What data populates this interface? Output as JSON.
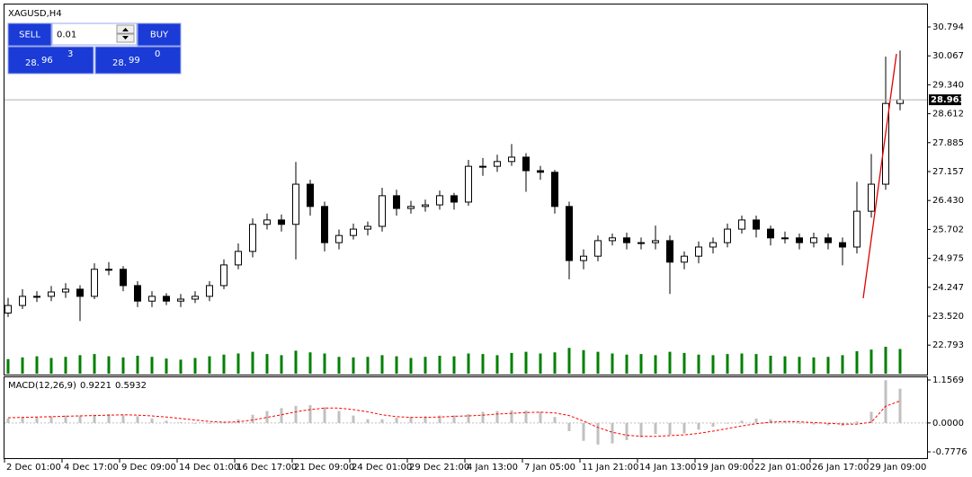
{
  "trade_panel": {
    "sell": "SELL",
    "buy": "BUY",
    "lot": "0.01",
    "sell_price": [
      "28.",
      "96",
      "3"
    ],
    "buy_price": [
      "28.",
      "99",
      "0"
    ]
  },
  "chart_data": [
    {
      "type": "candlestick",
      "title": "XAGUSD,H4",
      "categories": [
        "2 Dec 01:00",
        null,
        null,
        null,
        "4 Dec 17:00",
        null,
        null,
        null,
        "9 Dec 09:00",
        null,
        null,
        null,
        "14 Dec 01:00",
        null,
        null,
        null,
        "16 Dec 17:00",
        null,
        null,
        null,
        "21 Dec 09:00",
        null,
        null,
        null,
        "24 Dec 01:00",
        null,
        null,
        null,
        "29 Dec 21:00",
        null,
        null,
        null,
        "4 Jan 13:00",
        null,
        null,
        null,
        "7 Jan 05:00",
        null,
        null,
        null,
        "11 Jan 21:00",
        null,
        null,
        null,
        "14 Jan 13:00",
        null,
        null,
        null,
        "19 Jan 09:00",
        null,
        null,
        null,
        "22 Jan 01:00",
        null,
        null,
        null,
        "26 Jan 17:00",
        null,
        null,
        null,
        "29 Jan 09:00",
        null,
        null
      ],
      "open": [
        23.6,
        23.79,
        24.02,
        24.02,
        24.13,
        24.2,
        24.02,
        24.7,
        24.7,
        24.29,
        23.9,
        24.02,
        23.9,
        23.95,
        24.02,
        24.29,
        24.81,
        25.15,
        25.83,
        25.94,
        25.83,
        26.84,
        26.28,
        25.37,
        25.55,
        25.71,
        25.78,
        26.55,
        26.23,
        26.28,
        26.32,
        26.55,
        26.39,
        27.29,
        27.29,
        27.41,
        27.52,
        27.18,
        27.14,
        26.28,
        24.92,
        25.03,
        25.42,
        25.49,
        25.37,
        25.37,
        25.42,
        24.88,
        25.03,
        25.26,
        25.37,
        25.71,
        25.94,
        25.71,
        25.49,
        25.49,
        25.37,
        25.49,
        25.37,
        25.26,
        26.16,
        26.84,
        28.87
      ],
      "high": [
        23.98,
        24.2,
        24.15,
        24.28,
        24.35,
        24.3,
        24.85,
        24.88,
        24.78,
        24.4,
        24.15,
        24.1,
        24.08,
        24.15,
        24.4,
        24.95,
        25.35,
        25.98,
        26.1,
        26.08,
        27.4,
        26.95,
        26.4,
        25.7,
        25.85,
        25.9,
        26.75,
        26.7,
        26.42,
        26.45,
        26.68,
        26.62,
        27.45,
        27.5,
        27.58,
        27.85,
        27.62,
        27.3,
        27.2,
        26.4,
        25.2,
        25.55,
        25.6,
        25.62,
        25.5,
        25.8,
        25.55,
        25.15,
        25.4,
        25.5,
        25.85,
        26.05,
        26.05,
        25.8,
        25.65,
        25.6,
        25.62,
        25.6,
        25.5,
        26.9,
        27.6,
        30.05,
        30.2
      ],
      "low": [
        23.5,
        23.7,
        23.88,
        23.9,
        23.98,
        23.4,
        23.95,
        24.55,
        24.15,
        23.75,
        23.75,
        23.8,
        23.75,
        23.85,
        23.9,
        24.2,
        24.7,
        25.0,
        25.7,
        25.65,
        24.95,
        26.05,
        25.15,
        25.2,
        25.45,
        25.55,
        25.65,
        26.05,
        26.1,
        26.15,
        26.2,
        26.2,
        26.3,
        27.05,
        27.15,
        27.3,
        26.65,
        26.95,
        26.1,
        24.45,
        24.7,
        24.9,
        25.3,
        25.2,
        25.2,
        25.2,
        24.08,
        24.7,
        24.85,
        25.1,
        25.25,
        25.6,
        25.5,
        25.3,
        25.35,
        25.2,
        25.25,
        25.2,
        24.8,
        25.1,
        26.0,
        26.7,
        28.7
      ],
      "close": [
        23.79,
        24.02,
        24.02,
        24.13,
        24.2,
        24.02,
        24.7,
        24.7,
        24.29,
        23.9,
        24.02,
        23.9,
        23.95,
        24.02,
        24.29,
        24.81,
        25.15,
        25.83,
        25.94,
        25.83,
        26.84,
        26.28,
        25.37,
        25.55,
        25.71,
        25.78,
        26.55,
        26.23,
        26.28,
        26.32,
        26.55,
        26.39,
        27.29,
        27.29,
        27.41,
        27.52,
        27.18,
        27.14,
        26.28,
        24.92,
        25.03,
        25.42,
        25.49,
        25.37,
        25.37,
        25.42,
        24.88,
        25.03,
        25.26,
        25.37,
        25.71,
        25.94,
        25.71,
        25.49,
        25.49,
        25.37,
        25.49,
        25.37,
        25.26,
        26.16,
        26.84,
        28.87,
        28.963
      ],
      "volume": [
        2600,
        2900,
        3100,
        2800,
        3000,
        3300,
        3500,
        3100,
        2900,
        3200,
        3000,
        2700,
        2500,
        2800,
        3100,
        3400,
        3600,
        3900,
        3500,
        3300,
        4100,
        3800,
        3600,
        3000,
        2900,
        3000,
        3300,
        3100,
        2800,
        3000,
        3200,
        3100,
        3600,
        3500,
        3300,
        3700,
        3900,
        3600,
        3800,
        4600,
        4200,
        3900,
        3600,
        3400,
        3500,
        3300,
        3900,
        3700,
        3400,
        3300,
        3500,
        3600,
        3500,
        3200,
        3100,
        3000,
        2900,
        3000,
        3300,
        4000,
        4300,
        4800,
        4400
      ],
      "volume_color": "#008000",
      "color": "#000000",
      "ylim": [
        22.052,
        31.359
      ],
      "yticks": [
        30.794,
        30.067,
        {
          "value": 29.34,
          "label": "29.340"
        },
        28.612,
        27.885,
        27.157,
        {
          "value": 26.43,
          "label": "26.430"
        },
        25.702,
        24.975,
        24.247,
        {
          "value": 23.52,
          "label": "23.520"
        },
        22.793
      ]
    },
    {
      "type": "macd",
      "title": "MACD(12,26,9)",
      "macd": [
        0.12,
        0.15,
        0.17,
        0.18,
        0.2,
        0.2,
        0.22,
        0.24,
        0.22,
        0.18,
        0.12,
        0.06,
        0.02,
        -0.02,
        -0.02,
        0.02,
        0.1,
        0.22,
        0.32,
        0.4,
        0.46,
        0.48,
        0.42,
        0.32,
        0.2,
        0.1,
        0.1,
        0.14,
        0.16,
        0.18,
        0.2,
        0.2,
        0.24,
        0.3,
        0.32,
        0.34,
        0.33,
        0.3,
        0.16,
        -0.22,
        -0.48,
        -0.58,
        -0.55,
        -0.46,
        -0.38,
        -0.3,
        -0.32,
        -0.28,
        -0.18,
        -0.1,
        -0.02,
        0.06,
        0.12,
        0.1,
        0.04,
        -0.02,
        -0.04,
        -0.06,
        -0.08,
        0.04,
        0.3,
        1.15,
        0.9221
      ],
      "signal": [
        0.14,
        0.15,
        0.16,
        0.17,
        0.18,
        0.19,
        0.2,
        0.21,
        0.22,
        0.21,
        0.19,
        0.16,
        0.12,
        0.08,
        0.04,
        0.02,
        0.03,
        0.08,
        0.15,
        0.22,
        0.3,
        0.36,
        0.4,
        0.4,
        0.36,
        0.3,
        0.22,
        0.17,
        0.15,
        0.15,
        0.16,
        0.18,
        0.19,
        0.21,
        0.24,
        0.26,
        0.28,
        0.29,
        0.27,
        0.2,
        0.05,
        -0.12,
        -0.25,
        -0.33,
        -0.36,
        -0.36,
        -0.34,
        -0.32,
        -0.28,
        -0.22,
        -0.15,
        -0.08,
        -0.02,
        0.02,
        0.04,
        0.03,
        0.01,
        -0.01,
        -0.03,
        -0.03,
        0.02,
        0.45,
        0.5932
      ],
      "hist_color": "#c0c0c0",
      "signal_color": "#ff0000",
      "ylim": [
        -0.946,
        1.229
      ],
      "yticks": [
        1.1569,
        {
          "value": 0,
          "label": "0.0000"
        },
        -0.7776
      ]
    }
  ]
}
